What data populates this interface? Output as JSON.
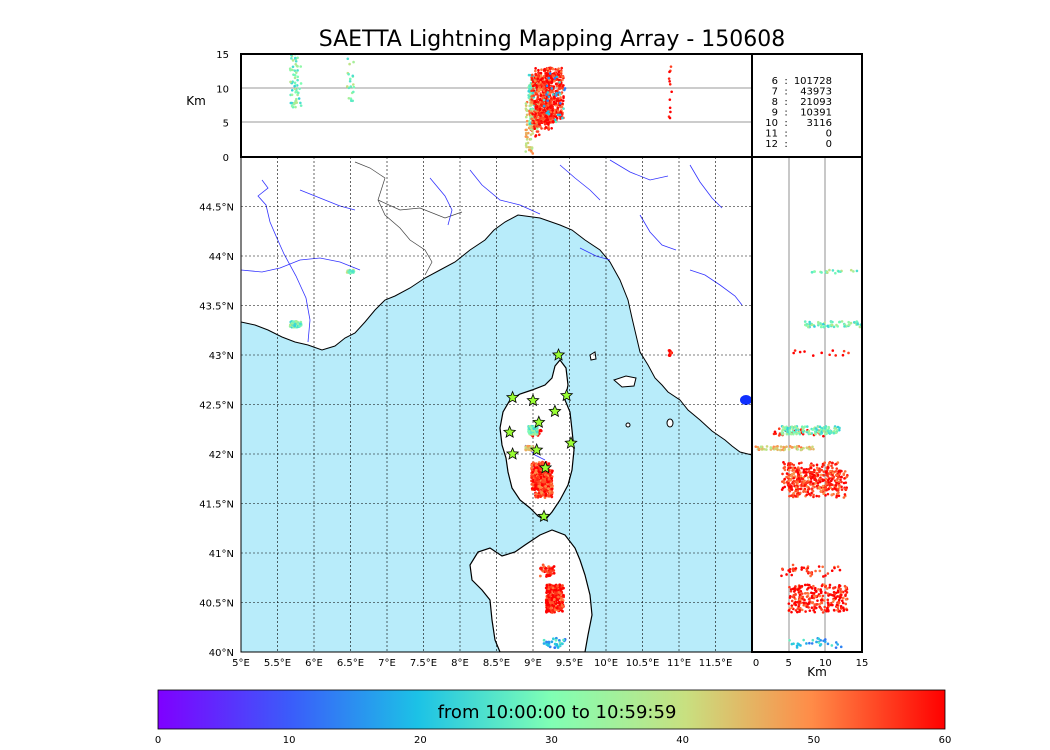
{
  "title": "SAETTA Lightning Mapping Array - 150608",
  "chart_data": {
    "type": "scatter",
    "title": "SAETTA Lightning Mapping Array - 150608",
    "map": {
      "lon_range": [
        5.0,
        12.0
      ],
      "lat_range": [
        40.0,
        45.0
      ],
      "x_ticks": [
        "5°E",
        "5.5°E",
        "6°E",
        "6.5°E",
        "7°E",
        "7.5°E",
        "8°E",
        "8.5°E",
        "9°E",
        "9.5°E",
        "10°E",
        "10.5°E",
        "11°E",
        "11.5°E"
      ],
      "y_ticks": [
        "40°N",
        "40.5°N",
        "41°N",
        "41.5°N",
        "42°N",
        "42.5°N",
        "43°N",
        "43.5°N",
        "44°N",
        "44.5°N"
      ],
      "grid": true,
      "sea_color": "#b8ecfa",
      "land_color": "#ffffff",
      "river_color": "#3333ff"
    },
    "altitude_panel": {
      "ylabel": "Km",
      "ylim": [
        0,
        15
      ],
      "y_ticks": [
        "0",
        "5",
        "10",
        "15"
      ]
    },
    "side_panel": {
      "xlabel": "Km",
      "xlim": [
        0,
        15
      ],
      "x_ticks": [
        "0",
        "5",
        "10",
        "15"
      ]
    },
    "station_counts": [
      {
        "label": "6",
        "count": "101728",
        "color": "#000000"
      },
      {
        "label": "7",
        "count": "43973",
        "color": "#ff0000"
      },
      {
        "label": "8",
        "count": "21093",
        "color": "#000000"
      },
      {
        "label": "9",
        "count": "10391",
        "color": "#000000"
      },
      {
        "label": "10",
        "count": "3116",
        "color": "#000000"
      },
      {
        "label": "11",
        "count": "0",
        "color": "#000000"
      },
      {
        "label": "12",
        "count": "0",
        "color": "#000000"
      }
    ],
    "stations": [
      {
        "lon": 9.35,
        "lat": 43.0
      },
      {
        "lon": 8.72,
        "lat": 42.57
      },
      {
        "lon": 9.0,
        "lat": 42.54
      },
      {
        "lon": 9.46,
        "lat": 42.59
      },
      {
        "lon": 9.3,
        "lat": 42.43
      },
      {
        "lon": 9.08,
        "lat": 42.32
      },
      {
        "lon": 8.68,
        "lat": 42.22
      },
      {
        "lon": 9.52,
        "lat": 42.11
      },
      {
        "lon": 9.05,
        "lat": 42.04
      },
      {
        "lon": 8.72,
        "lat": 42.0
      },
      {
        "lon": 9.17,
        "lat": 41.86
      },
      {
        "lon": 9.15,
        "lat": 41.37
      }
    ],
    "event_clusters": [
      {
        "lon": 5.75,
        "lat": 43.31,
        "alt": 11.2,
        "t": 30
      },
      {
        "lon": 6.5,
        "lat": 43.84,
        "alt": 11.5,
        "t": 32
      },
      {
        "lon": 9.05,
        "lat": 42.22,
        "alt": 7.0,
        "t": 58
      },
      {
        "lon": 9.0,
        "lat": 42.24,
        "alt": 8.0,
        "t": 30
      },
      {
        "lon": 8.95,
        "lat": 42.06,
        "alt": 4.5,
        "t": 45
      },
      {
        "lon": 9.1,
        "lat": 41.78,
        "alt": 8.0,
        "t": 58
      },
      {
        "lon": 9.15,
        "lat": 41.7,
        "alt": 9.0,
        "t": 56
      },
      {
        "lon": 9.3,
        "lat": 40.54,
        "alt": 9.0,
        "t": 58
      },
      {
        "lon": 9.2,
        "lat": 40.82,
        "alt": 8.0,
        "t": 59
      },
      {
        "lon": 9.3,
        "lat": 40.09,
        "alt": 8.5,
        "t": 20
      },
      {
        "lon": 10.88,
        "lat": 43.02,
        "alt": 9.5,
        "t": 60
      }
    ],
    "colorbar": {
      "label": "from 10:00:00 to 10:59:59",
      "range": [
        0,
        60
      ],
      "ticks": [
        "0",
        "10",
        "20",
        "30",
        "40",
        "50",
        "60"
      ]
    }
  }
}
